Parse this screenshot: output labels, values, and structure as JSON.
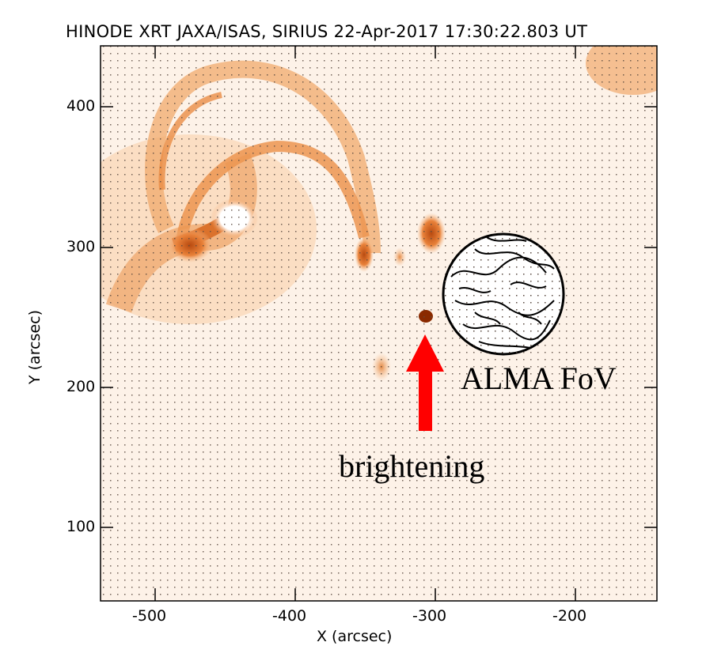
{
  "title": "HINODE XRT JAXA/ISAS, SIRIUS 22-Apr-2017 17:30:22.803 UT",
  "xaxis": {
    "label": "X (arcsec)",
    "ticks": [
      "-500",
      "-400",
      "-300",
      "-200"
    ]
  },
  "yaxis": {
    "label": "Y (arcsec)",
    "ticks": [
      "400",
      "300",
      "200",
      "100"
    ]
  },
  "annotations": {
    "fov": "ALMA FoV",
    "brightening": "brightening"
  },
  "colors": {
    "loop": "#e98a3a",
    "background": "#fdf3ea",
    "arrow": "#ff0000"
  }
}
